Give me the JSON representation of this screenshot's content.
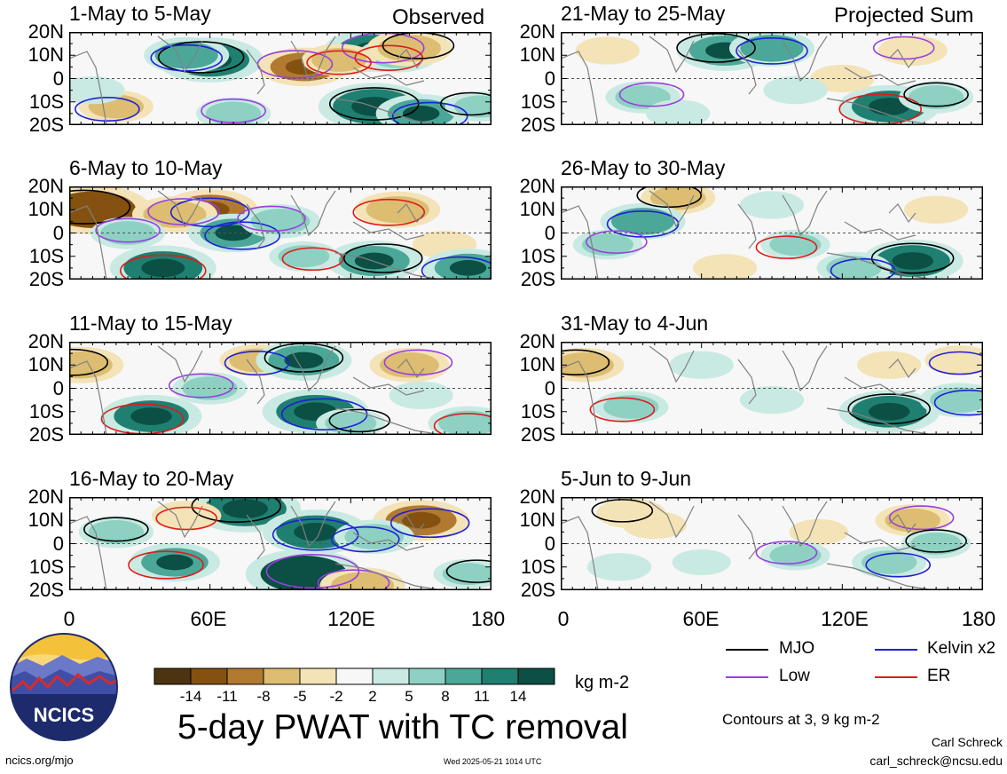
{
  "header": {
    "left_label": "Observed",
    "right_label": "Projected Sum"
  },
  "panels": [
    {
      "title": "1-May to 5-May"
    },
    {
      "title": "21-May to 25-May"
    },
    {
      "title": "6-May to 10-May"
    },
    {
      "title": "26-May to 30-May"
    },
    {
      "title": "11-May to 15-May"
    },
    {
      "title": "31-May to 4-Jun"
    },
    {
      "title": "16-May to 20-May"
    },
    {
      "title": "5-Jun to 9-Jun"
    }
  ],
  "axes": {
    "lat_ticks": [
      "20N",
      "10N",
      "0",
      "10S",
      "20S"
    ],
    "lon_ticks": [
      "0",
      "60E",
      "120E",
      "180"
    ]
  },
  "colorbar": {
    "labels": [
      "-14",
      "-11",
      "-8",
      "-5",
      "-2",
      "2",
      "5",
      "8",
      "11",
      "14"
    ],
    "colors": [
      "#4d3410",
      "#845111",
      "#b27a31",
      "#dcbd72",
      "#f3e3b7",
      "#f7f7f7",
      "#c9eae3",
      "#8ed1c3",
      "#4ba898",
      "#1f7f70",
      "#0b4f45"
    ],
    "unit": "kg m-2"
  },
  "legend": {
    "items": [
      {
        "label": "MJO",
        "color": "#000000"
      },
      {
        "label": "Kelvin x2",
        "color": "#1f1fd6"
      },
      {
        "label": "Low",
        "color": "#9a3ee0"
      },
      {
        "label": "ER",
        "color": "#e01a1a"
      }
    ],
    "contour_note": "Contours at 3, 9 kg m-2"
  },
  "footer": {
    "main_title": "5-day PWAT with TC removal",
    "logo_text": "NCICS",
    "url": "ncics.org/mjo",
    "timestamp": "Wed 2025-05-21 1014 UTC",
    "author": "Carl Schreck",
    "email": "carl_schreck@ncsu.edu"
  },
  "chart_data": {
    "type": "heatmap",
    "title": "5-day PWAT with TC removal",
    "xlabel": "",
    "ylabel": "",
    "xlim": [
      0,
      180
    ],
    "ylim": [
      -20,
      20
    ],
    "x_ticks": [
      "0",
      "60E",
      "120E",
      "180"
    ],
    "y_ticks": [
      "20N",
      "10N",
      "0",
      "10S",
      "20S"
    ],
    "units": "kg m-2",
    "color_levels": [
      -14,
      -11,
      -8,
      -5,
      -2,
      2,
      5,
      8,
      11,
      14
    ],
    "contour_levels": [
      3,
      9
    ],
    "series": [
      {
        "name": "MJO"
      },
      {
        "name": "Kelvin x2"
      },
      {
        "name": "Low"
      },
      {
        "name": "ER"
      }
    ],
    "panels": [
      {
        "title": "1-May to 5-May",
        "blobs": [
          {
            "lon": 60,
            "lat": 8,
            "value": 12
          },
          {
            "lon": 50,
            "lat": 10,
            "value": 8
          },
          {
            "lon": 130,
            "lat": 12,
            "value": 11
          },
          {
            "lon": 140,
            "lat": 10,
            "value": 7
          },
          {
            "lon": 130,
            "lat": -12,
            "value": 13
          },
          {
            "lon": 150,
            "lat": -15,
            "value": 9
          },
          {
            "lon": 100,
            "lat": 5,
            "value": -9
          },
          {
            "lon": 115,
            "lat": 8,
            "value": -6
          },
          {
            "lon": 145,
            "lat": 13,
            "value": -8
          },
          {
            "lon": 20,
            "lat": -12,
            "value": -6
          },
          {
            "lon": 70,
            "lat": -15,
            "value": 6
          },
          {
            "lon": 10,
            "lat": -5,
            "value": 4
          },
          {
            "lon": 175,
            "lat": -12,
            "value": 5
          }
        ]
      },
      {
        "title": "21-May to 25-May",
        "blobs": [
          {
            "lon": 70,
            "lat": 12,
            "value": 10
          },
          {
            "lon": 90,
            "lat": 13,
            "value": 8
          },
          {
            "lon": 35,
            "lat": -8,
            "value": 6
          },
          {
            "lon": 140,
            "lat": -12,
            "value": 11
          },
          {
            "lon": 160,
            "lat": -8,
            "value": 6
          },
          {
            "lon": 120,
            "lat": 0,
            "value": -4
          },
          {
            "lon": 150,
            "lat": 12,
            "value": -5
          },
          {
            "lon": 20,
            "lat": 12,
            "value": -4
          },
          {
            "lon": 100,
            "lat": -5,
            "value": 4
          },
          {
            "lon": 50,
            "lat": -15,
            "value": 4
          }
        ]
      },
      {
        "title": "6-May to 10-May",
        "blobs": [
          {
            "lon": 10,
            "lat": 10,
            "value": -14
          },
          {
            "lon": 60,
            "lat": 10,
            "value": -10
          },
          {
            "lon": 45,
            "lat": 8,
            "value": -8
          },
          {
            "lon": 140,
            "lat": 10,
            "value": -8
          },
          {
            "lon": 160,
            "lat": -5,
            "value": -4
          },
          {
            "lon": 70,
            "lat": 0,
            "value": 9
          },
          {
            "lon": 90,
            "lat": 5,
            "value": 7
          },
          {
            "lon": 40,
            "lat": -15,
            "value": 12
          },
          {
            "lon": 130,
            "lat": -12,
            "value": 10
          },
          {
            "lon": 170,
            "lat": -15,
            "value": 9
          },
          {
            "lon": 25,
            "lat": 0,
            "value": 6
          },
          {
            "lon": 100,
            "lat": -10,
            "value": 5
          }
        ]
      },
      {
        "title": "26-May to 30-May",
        "blobs": [
          {
            "lon": 50,
            "lat": 15,
            "value": -6
          },
          {
            "lon": 35,
            "lat": 5,
            "value": 8
          },
          {
            "lon": 20,
            "lat": -5,
            "value": 5
          },
          {
            "lon": 100,
            "lat": -5,
            "value": 5
          },
          {
            "lon": 150,
            "lat": -12,
            "value": 11
          },
          {
            "lon": 125,
            "lat": -15,
            "value": 6
          },
          {
            "lon": 160,
            "lat": 10,
            "value": -4
          },
          {
            "lon": 70,
            "lat": -15,
            "value": -4
          },
          {
            "lon": 90,
            "lat": 12,
            "value": 4
          }
        ]
      },
      {
        "title": "11-May to 15-May",
        "blobs": [
          {
            "lon": 5,
            "lat": 10,
            "value": -8
          },
          {
            "lon": 80,
            "lat": 12,
            "value": -6
          },
          {
            "lon": 145,
            "lat": 10,
            "value": -7
          },
          {
            "lon": 35,
            "lat": -12,
            "value": 11
          },
          {
            "lon": 100,
            "lat": 12,
            "value": 10
          },
          {
            "lon": 105,
            "lat": -10,
            "value": 12
          },
          {
            "lon": 60,
            "lat": 0,
            "value": 6
          },
          {
            "lon": 170,
            "lat": -15,
            "value": 7
          },
          {
            "lon": 120,
            "lat": -15,
            "value": 5
          },
          {
            "lon": 150,
            "lat": -3,
            "value": 4
          }
        ]
      },
      {
        "title": "31-May to 4-Jun",
        "blobs": [
          {
            "lon": 10,
            "lat": 10,
            "value": -7
          },
          {
            "lon": 170,
            "lat": 12,
            "value": -5
          },
          {
            "lon": 140,
            "lat": 10,
            "value": -4
          },
          {
            "lon": 30,
            "lat": -8,
            "value": 6
          },
          {
            "lon": 140,
            "lat": -10,
            "value": 11
          },
          {
            "lon": 170,
            "lat": -5,
            "value": 7
          },
          {
            "lon": 60,
            "lat": 10,
            "value": 4
          },
          {
            "lon": 90,
            "lat": -5,
            "value": 4
          }
        ]
      },
      {
        "title": "16-May to 20-May",
        "blobs": [
          {
            "lon": 75,
            "lat": 15,
            "value": 13
          },
          {
            "lon": 105,
            "lat": 5,
            "value": 12
          },
          {
            "lon": 100,
            "lat": -13,
            "value": 14
          },
          {
            "lon": 45,
            "lat": -8,
            "value": 9
          },
          {
            "lon": 20,
            "lat": 5,
            "value": 6
          },
          {
            "lon": 150,
            "lat": 10,
            "value": -10
          },
          {
            "lon": 125,
            "lat": -18,
            "value": -8
          },
          {
            "lon": 50,
            "lat": 12,
            "value": -5
          },
          {
            "lon": 170,
            "lat": -13,
            "value": 5
          },
          {
            "lon": 130,
            "lat": 3,
            "value": 7
          }
        ]
      },
      {
        "title": "5-Jun to 9-Jun",
        "blobs": [
          {
            "lon": 30,
            "lat": 13,
            "value": -5
          },
          {
            "lon": 40,
            "lat": 8,
            "value": -4
          },
          {
            "lon": 150,
            "lat": 10,
            "value": -6
          },
          {
            "lon": 110,
            "lat": 5,
            "value": -3
          },
          {
            "lon": 160,
            "lat": 0,
            "value": 5
          },
          {
            "lon": 140,
            "lat": -8,
            "value": 6
          },
          {
            "lon": 100,
            "lat": -5,
            "value": 5
          },
          {
            "lon": 25,
            "lat": -10,
            "value": 4
          },
          {
            "lon": 60,
            "lat": -8,
            "value": 3
          }
        ]
      }
    ]
  }
}
